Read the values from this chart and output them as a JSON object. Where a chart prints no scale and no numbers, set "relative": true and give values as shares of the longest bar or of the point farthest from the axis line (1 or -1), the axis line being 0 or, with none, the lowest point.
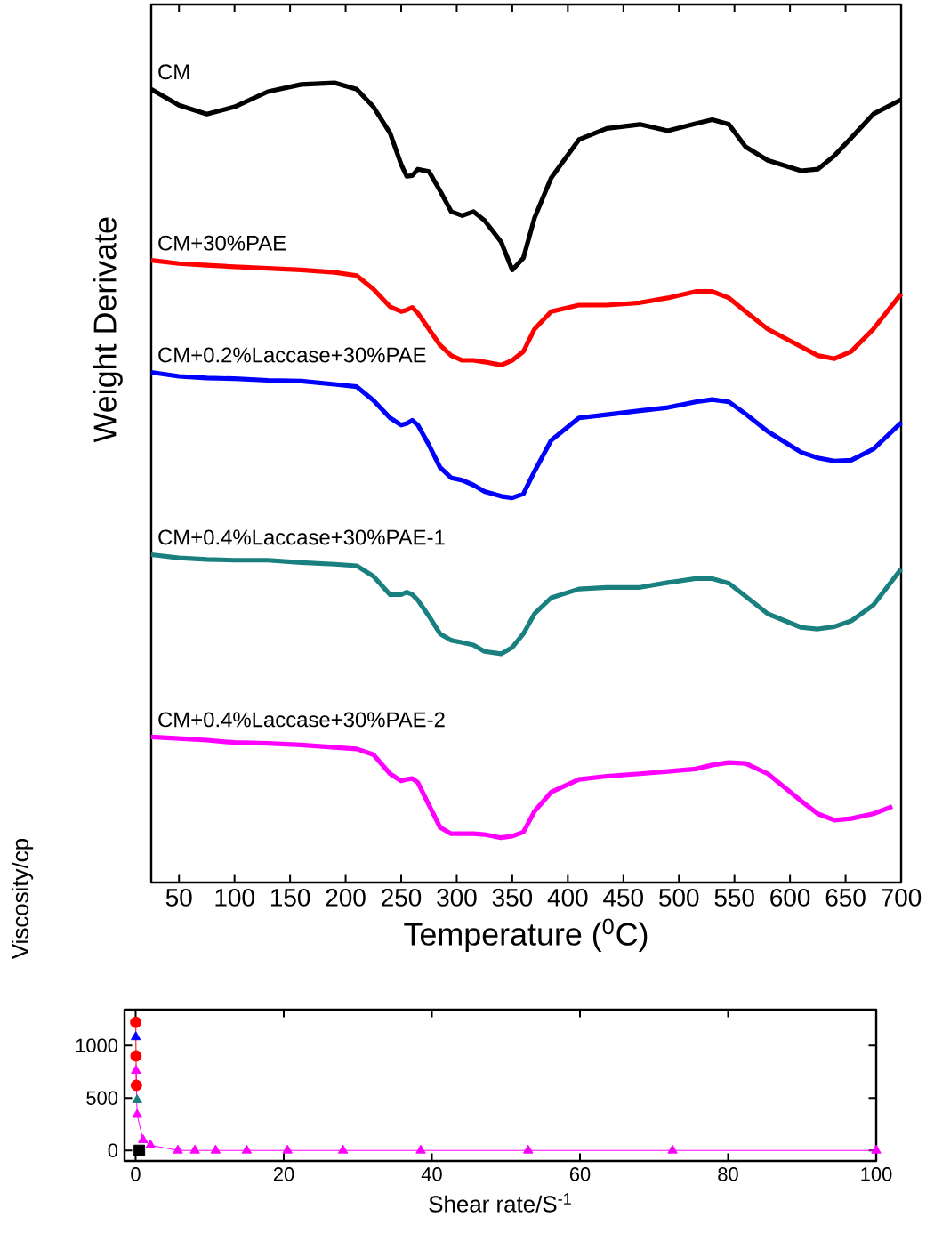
{
  "chart_data": [
    {
      "type": "line",
      "relative": true,
      "xlabel": "Temperature ($^{0}$C)",
      "ylabel": "Weight Derivate",
      "xlim": [
        25,
        700
      ],
      "xticks": [
        50,
        100,
        150,
        200,
        250,
        300,
        350,
        400,
        450,
        500,
        550,
        600,
        650,
        700
      ],
      "x": [
        25,
        50,
        75,
        100,
        130,
        160,
        190,
        210,
        225,
        240,
        250,
        255,
        260,
        265,
        275,
        285,
        295,
        305,
        315,
        325,
        340,
        350,
        360,
        370,
        385,
        410,
        435,
        465,
        490,
        515,
        530,
        545,
        560,
        580,
        610,
        625,
        640,
        655,
        675,
        700
      ],
      "series": [
        {
          "name": "CM",
          "color": "#000000",
          "values": [
            0.992,
            0.972,
            0.961,
            0.97,
            0.989,
            0.998,
            1.0,
            0.992,
            0.97,
            0.937,
            0.898,
            0.883,
            0.884,
            0.892,
            0.889,
            0.865,
            0.839,
            0.834,
            0.839,
            0.828,
            0.801,
            0.766,
            0.781,
            0.831,
            0.881,
            0.929,
            0.943,
            0.948,
            0.94,
            0.949,
            0.954,
            0.948,
            0.92,
            0.903,
            0.89,
            0.892,
            0.909,
            0.931,
            0.961,
            0.979
          ]
        },
        {
          "name": "CM+30%PAE",
          "color": "#ff0000",
          "values": [
            0.778,
            0.774,
            0.772,
            0.77,
            0.768,
            0.766,
            0.763,
            0.759,
            0.742,
            0.72,
            0.714,
            0.716,
            0.719,
            0.712,
            0.692,
            0.672,
            0.659,
            0.653,
            0.653,
            0.651,
            0.647,
            0.653,
            0.664,
            0.692,
            0.714,
            0.722,
            0.722,
            0.725,
            0.731,
            0.739,
            0.739,
            0.731,
            0.714,
            0.692,
            0.67,
            0.659,
            0.655,
            0.664,
            0.692,
            0.736
          ]
        },
        {
          "name": "CM+0.2%Laccase+30%PAE",
          "color": "#0000ff",
          "values": [
            0.638,
            0.633,
            0.631,
            0.63,
            0.628,
            0.627,
            0.623,
            0.62,
            0.603,
            0.581,
            0.572,
            0.574,
            0.578,
            0.572,
            0.547,
            0.519,
            0.506,
            0.503,
            0.497,
            0.489,
            0.483,
            0.481,
            0.486,
            0.514,
            0.553,
            0.581,
            0.585,
            0.59,
            0.594,
            0.601,
            0.604,
            0.601,
            0.586,
            0.564,
            0.538,
            0.531,
            0.527,
            0.528,
            0.542,
            0.575
          ]
        },
        {
          "name": "CM+0.4%Laccase+30%PAE-1",
          "color": "#1a7f7f",
          "values": [
            0.41,
            0.406,
            0.404,
            0.403,
            0.403,
            0.4,
            0.398,
            0.396,
            0.383,
            0.36,
            0.36,
            0.363,
            0.36,
            0.353,
            0.333,
            0.311,
            0.303,
            0.3,
            0.297,
            0.289,
            0.286,
            0.294,
            0.311,
            0.336,
            0.356,
            0.367,
            0.369,
            0.369,
            0.375,
            0.38,
            0.38,
            0.374,
            0.358,
            0.336,
            0.319,
            0.317,
            0.32,
            0.327,
            0.347,
            0.392
          ]
        },
        {
          "name": "CM+0.4%Laccase+30%PAE-2",
          "color": "#ff00ff",
          "x": [
            25,
            50,
            75,
            100,
            130,
            160,
            190,
            210,
            225,
            240,
            250,
            255,
            260,
            265,
            275,
            285,
            295,
            305,
            315,
            325,
            340,
            350,
            360,
            370,
            385,
            410,
            435,
            465,
            490,
            515,
            530,
            545,
            560,
            580,
            610,
            625,
            640,
            655,
            675,
            692
          ],
          "values": [
            0.182,
            0.18,
            0.178,
            0.175,
            0.174,
            0.172,
            0.169,
            0.167,
            0.16,
            0.136,
            0.127,
            0.129,
            0.13,
            0.125,
            0.097,
            0.069,
            0.061,
            0.061,
            0.061,
            0.06,
            0.056,
            0.058,
            0.063,
            0.089,
            0.113,
            0.129,
            0.133,
            0.136,
            0.139,
            0.142,
            0.147,
            0.15,
            0.149,
            0.136,
            0.102,
            0.086,
            0.078,
            0.08,
            0.086,
            0.095
          ]
        }
      ]
    },
    {
      "type": "line",
      "xlabel": "Shear rate/S$^{-1}$",
      "ylabel": "Viscosity/cp",
      "xlim": [
        -1.5,
        100
      ],
      "xticks": [
        0,
        20,
        40,
        60,
        80,
        100
      ],
      "ylim": [
        -100,
        1340
      ],
      "yticks": [
        0,
        500,
        1000
      ],
      "x": [
        0.02,
        0.05,
        0.1,
        0.2,
        0.5,
        1,
        2,
        5.7,
        8,
        10.8,
        15,
        20.5,
        28,
        38.5,
        53,
        72.5,
        100
      ],
      "series": [
        {
          "color": "#000000",
          "marker": "square",
          "values": [
            null,
            null,
            null,
            null,
            0,
            null,
            null,
            null,
            null,
            null,
            null,
            null,
            null,
            null,
            null,
            null,
            null
          ]
        },
        {
          "color": "#ff0000",
          "marker": "circle",
          "values": [
            1220,
            900,
            620,
            null,
            null,
            null,
            null,
            null,
            null,
            null,
            null,
            null,
            null,
            null,
            null,
            null,
            null
          ]
        },
        {
          "color": "#0000ff",
          "marker": "triangle",
          "values": [
            1080,
            null,
            null,
            null,
            null,
            null,
            null,
            null,
            null,
            null,
            null,
            null,
            null,
            null,
            null,
            null,
            null
          ]
        },
        {
          "color": "#1a7f7f",
          "marker": "triangle",
          "values": [
            null,
            null,
            null,
            480,
            null,
            null,
            null,
            null,
            null,
            null,
            null,
            null,
            null,
            null,
            null,
            null,
            null
          ]
        },
        {
          "color": "#ff00ff",
          "marker": "triangle",
          "values": [
            null,
            760,
            null,
            340,
            null,
            100,
            50,
            0,
            0,
            0,
            0,
            0,
            0,
            0,
            0,
            0,
            0
          ]
        }
      ]
    }
  ]
}
